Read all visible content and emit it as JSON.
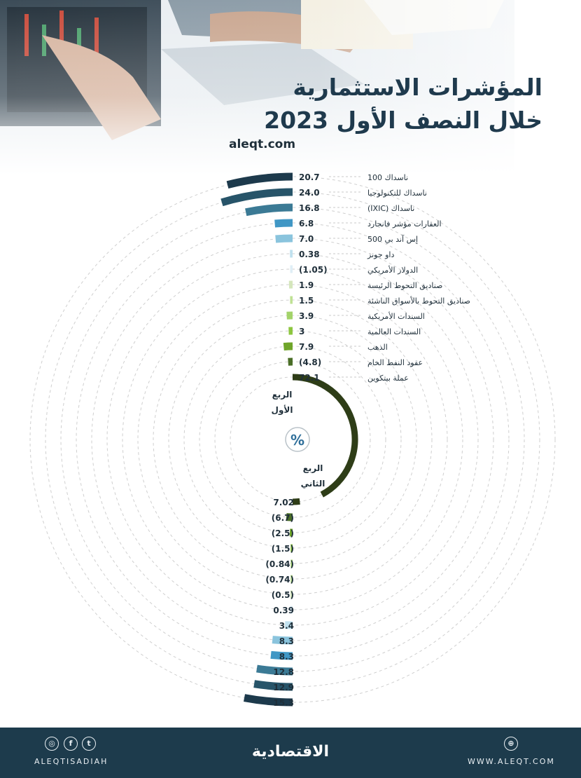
{
  "title_line1": "المؤشرات الاستثمارية",
  "title_line2": "خلال النصف الأول 2023",
  "site": "aleqt.com",
  "center_symbol": "%",
  "colors": [
    "#1d3a4c",
    "#275469",
    "#3b7a95",
    "#4097c5",
    "#8ac4dd",
    "#c0e1ef",
    "#dfeef6",
    "#d5e6bc",
    "#bfe194",
    "#a3d36a",
    "#8dc63f",
    "#6fa52a",
    "#4a6e27",
    "#2e3d17"
  ],
  "chart_data": {
    "type": "radial_bar",
    "unit": "%",
    "categories": [
      "ناسداك 100",
      "ناسداك للتكنولوجيا",
      "ناسداك (IXIC)",
      "العقارات مؤشر فانجارد",
      "إس آند بي 500",
      "داو جونز",
      "الدولار الأمريكي",
      "صناديق التحوط الرئيسة",
      "صناديق التحوط بالأسواق الناشئة",
      "السندات الأمريكية",
      "السندات العالمية",
      "الذهب",
      "عقود النفط الخام",
      "عملة بيتكوين"
    ],
    "series": [
      {
        "name": "الربع الأول",
        "values": [
          20.7,
          24.0,
          16.8,
          6.8,
          7.0,
          0.38,
          -1.05,
          1.9,
          1.5,
          3.9,
          3,
          7.9,
          -4.8,
          72.1
        ],
        "labels": [
          "20.7",
          "24.0",
          "16.8",
          "6.8",
          "7.0",
          "0.38",
          "(1.05)",
          "1.9",
          "1.5",
          "3.9",
          "3",
          "7.9",
          "(4.8)",
          "72.1"
        ]
      },
      {
        "name": "الربع الثاني",
        "values": [
          15.3,
          12.9,
          12.8,
          8.3,
          8.3,
          3.4,
          0.39,
          -0.5,
          -0.74,
          -0.84,
          -1.5,
          -2.5,
          -6.7,
          7.02
        ],
        "labels": [
          "15.3",
          "12.9",
          "12.8",
          "8.3",
          "8.3",
          "3.4",
          "0.39",
          "(0.5)",
          "(0.74)",
          "(0.84)",
          "(1.5)",
          "(2.5)",
          "(6.7)",
          "7.02"
        ]
      }
    ]
  },
  "footer": {
    "handle": "ALEQTISADIAH",
    "logo_text": "الاقتصادية",
    "www": "WWW.ALEQT.COM",
    "social_icons": [
      "instagram-icon",
      "facebook-icon",
      "twitter-icon"
    ],
    "web_icon": "globe-icon"
  }
}
